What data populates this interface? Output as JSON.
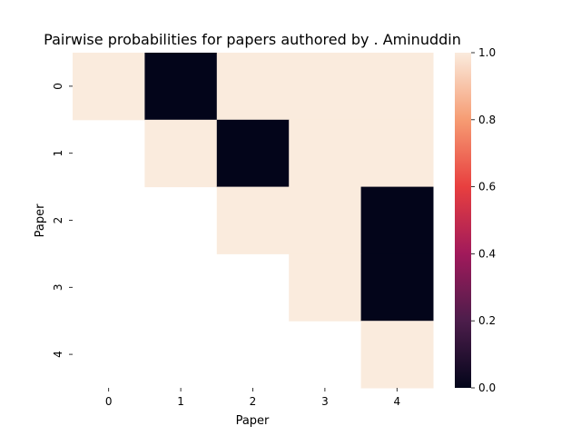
{
  "chart_data": {
    "type": "heatmap",
    "title": "Pairwise probabilities for papers authored by . Aminuddin",
    "xlabel": "Paper",
    "ylabel": "Paper",
    "x_categories": [
      "0",
      "1",
      "2",
      "3",
      "4"
    ],
    "y_categories": [
      "0",
      "1",
      "2",
      "3",
      "4"
    ],
    "values": [
      [
        1.0,
        0.0,
        1.0,
        1.0,
        1.0
      ],
      [
        null,
        1.0,
        0.0,
        1.0,
        1.0
      ],
      [
        null,
        null,
        1.0,
        1.0,
        0.0
      ],
      [
        null,
        null,
        null,
        1.0,
        0.0
      ],
      [
        null,
        null,
        null,
        null,
        1.0
      ]
    ],
    "colorbar": {
      "range": [
        0.0,
        1.0
      ],
      "ticks": [
        "0.0",
        "0.2",
        "0.4",
        "0.6",
        "0.8",
        "1.0"
      ],
      "colormap": "rocket",
      "colormap_stops": [
        "#03051a",
        "#4c1d4b",
        "#a11a5b",
        "#e83f3f",
        "#f69c73",
        "#faebdd"
      ]
    },
    "missing_color": "#ffffff"
  }
}
